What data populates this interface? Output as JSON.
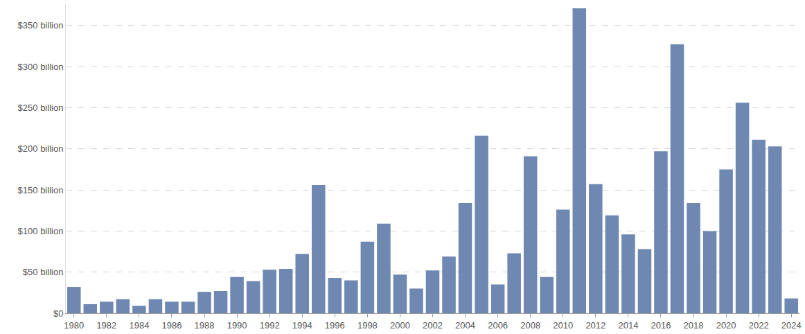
{
  "chart_data": {
    "type": "bar",
    "categories": [
      "1980",
      null,
      "1982",
      null,
      "1984",
      null,
      "1986",
      null,
      "1988",
      null,
      "1990",
      null,
      "1992",
      null,
      "1994",
      null,
      "1996",
      null,
      "1998",
      null,
      "2000",
      null,
      "2002",
      null,
      "2004",
      null,
      "2006",
      null,
      "2008",
      null,
      "2010",
      null,
      "2012",
      null,
      "2014",
      null,
      "2016",
      null,
      "2018",
      null,
      "2020",
      null,
      "2022",
      null,
      "2024"
    ],
    "values": [
      32,
      11,
      14,
      17,
      9,
      17,
      14,
      14,
      26,
      27,
      44,
      39,
      53,
      54,
      72,
      156,
      43,
      40,
      87,
      109,
      47,
      30,
      52,
      69,
      134,
      216,
      35,
      73,
      191,
      44,
      126,
      371,
      157,
      119,
      96,
      78,
      197,
      327,
      134,
      100,
      175,
      256,
      211,
      203,
      18
    ],
    "color": "#6e88b2",
    "ylim": [
      0,
      376
    ],
    "yticks": [
      {
        "value": 0,
        "label": "$0"
      },
      {
        "value": 50,
        "label": "$50 billion"
      },
      {
        "value": 100,
        "label": "$100 billion"
      },
      {
        "value": 150,
        "label": "$150 billion"
      },
      {
        "value": 200,
        "label": "$200 billion"
      },
      {
        "value": 250,
        "label": "$250 billion"
      },
      {
        "value": 300,
        "label": "$300 billion"
      },
      {
        "value": 350,
        "label": "$350 billion"
      }
    ],
    "grid": true
  }
}
